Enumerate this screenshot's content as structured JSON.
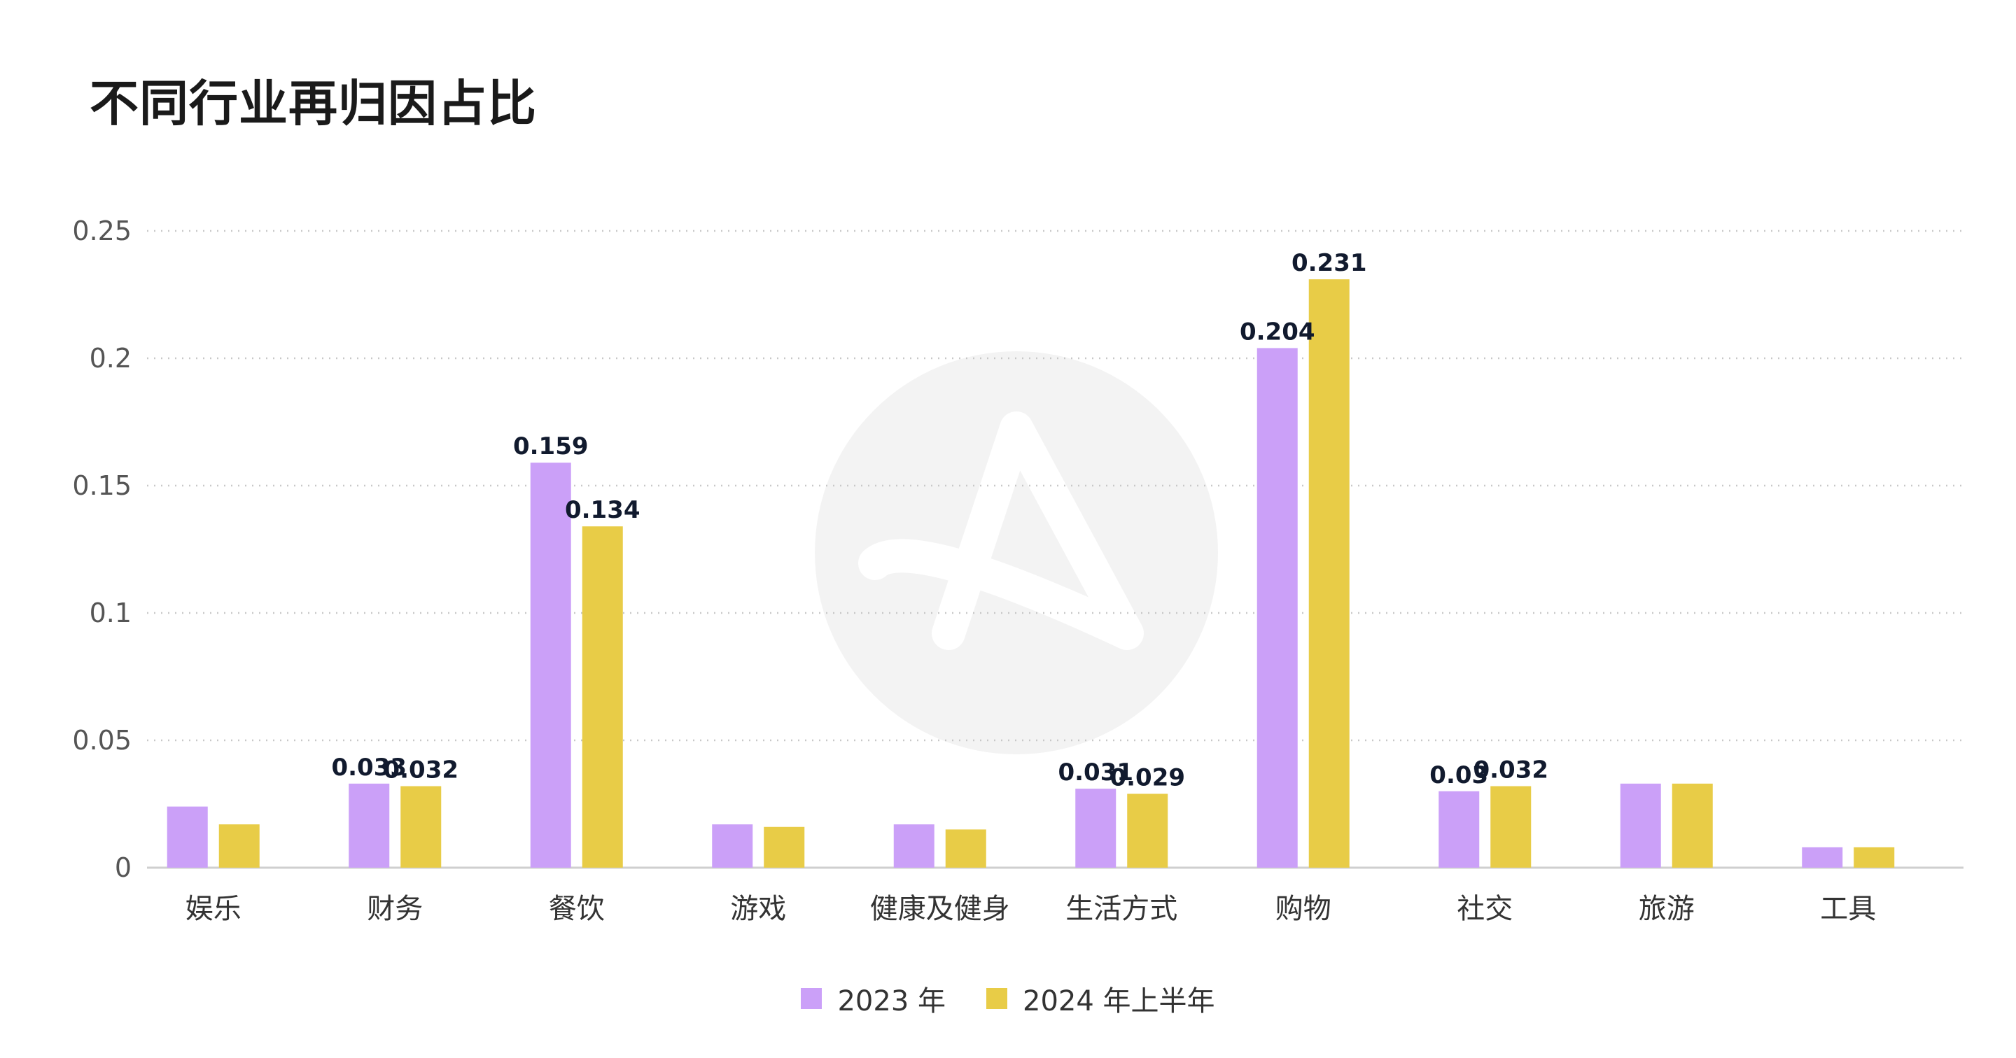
{
  "chart_data": {
    "type": "bar",
    "title": "不同行业再归因占比",
    "xlabel": "",
    "ylabel": "",
    "ylim": [
      0,
      0.25
    ],
    "yticks": [
      "0",
      "0.05",
      "0.1",
      "0.15",
      "0.2",
      "0.25"
    ],
    "grid": true,
    "legend_position": "bottom-center",
    "categories": [
      "娱乐",
      "财务",
      "餐饮",
      "游戏",
      "健康及健身",
      "生活方式",
      "购物",
      "社交",
      "旅游",
      "工具"
    ],
    "series": [
      {
        "name": "2023 年",
        "color": "#CBA0F8",
        "values": [
          0.024,
          0.033,
          0.159,
          0.017,
          0.017,
          0.031,
          0.204,
          0.03,
          0.033,
          0.008
        ],
        "labels": [
          "",
          "0.033",
          "0.159",
          "",
          "",
          "0.031",
          "0.204",
          "0.03",
          "",
          ""
        ]
      },
      {
        "name": "2024 年上半年",
        "color": "#E8CC47",
        "values": [
          0.017,
          0.032,
          0.134,
          0.016,
          0.015,
          0.029,
          0.231,
          0.032,
          0.033,
          0.008
        ],
        "labels": [
          "",
          "0.032",
          "0.134",
          "",
          "",
          "0.029",
          "0.231",
          "0.032",
          "",
          ""
        ]
      }
    ]
  }
}
